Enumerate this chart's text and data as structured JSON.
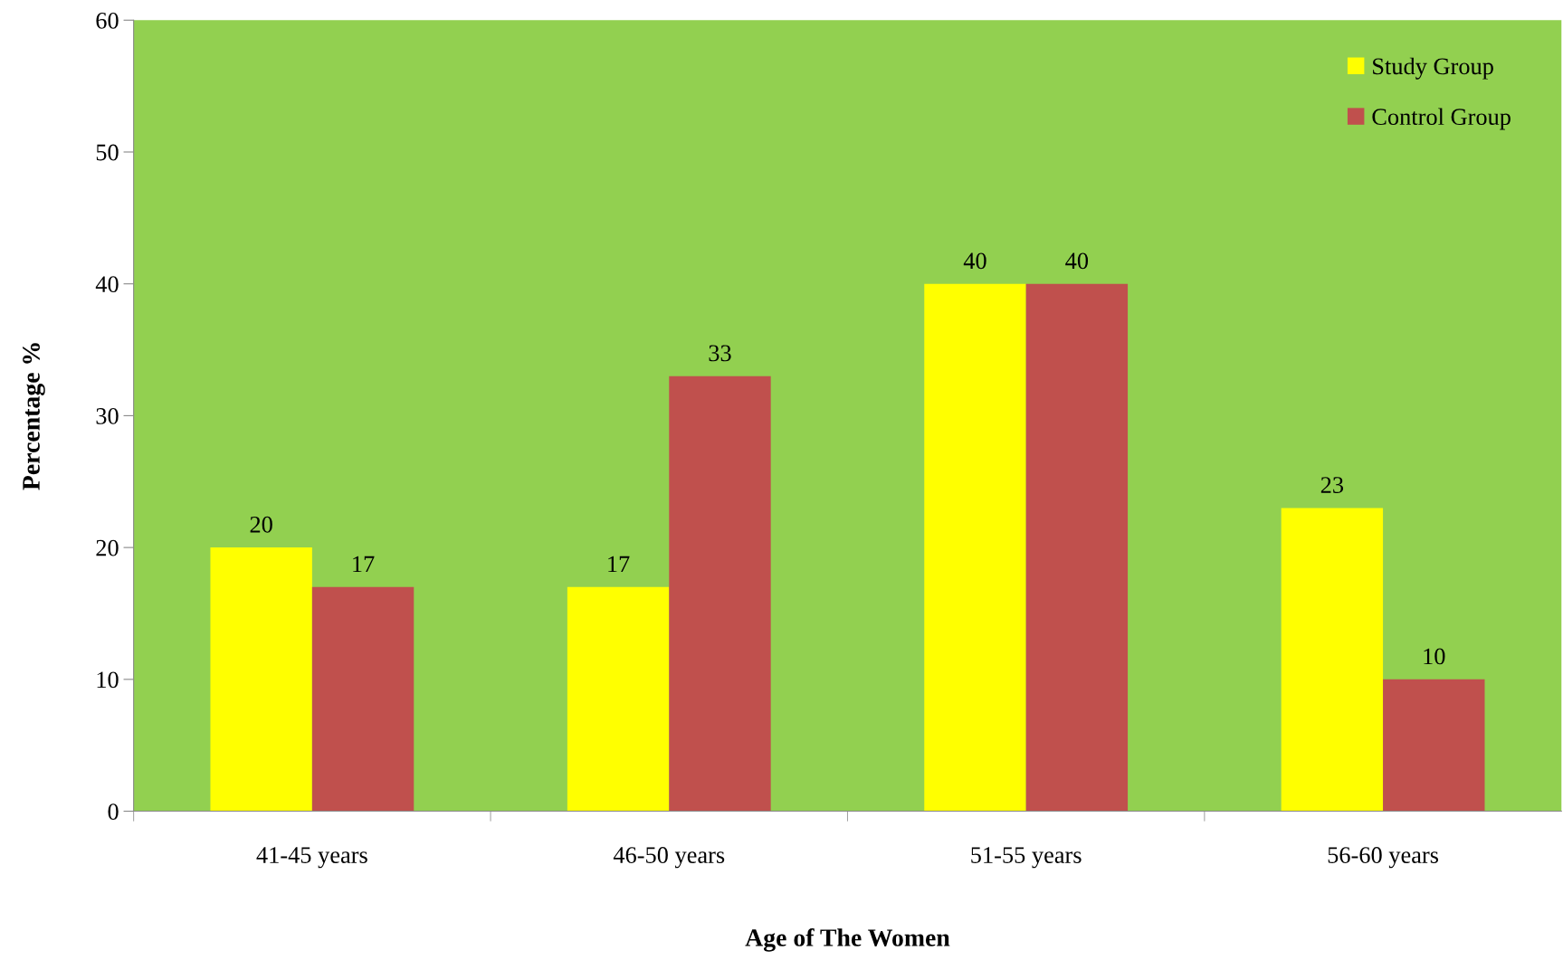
{
  "chart_data": {
    "type": "bar",
    "xlabel": "Age of The Women",
    "ylabel": "Percentage %",
    "categories": [
      "41-45 years",
      "46-50 years",
      "51-55 years",
      "56-60 years"
    ],
    "series": [
      {
        "name": "Study Group",
        "color": "#ffff00",
        "values": [
          20,
          17,
          40,
          23
        ]
      },
      {
        "name": "Control Group",
        "color": "#c0504d",
        "values": [
          17,
          33,
          40,
          10
        ]
      }
    ],
    "ylim": [
      0,
      60
    ],
    "yticks": [
      0,
      10,
      20,
      30,
      40,
      50,
      60
    ],
    "data_labels": true,
    "grid": false,
    "legend": "top right"
  }
}
